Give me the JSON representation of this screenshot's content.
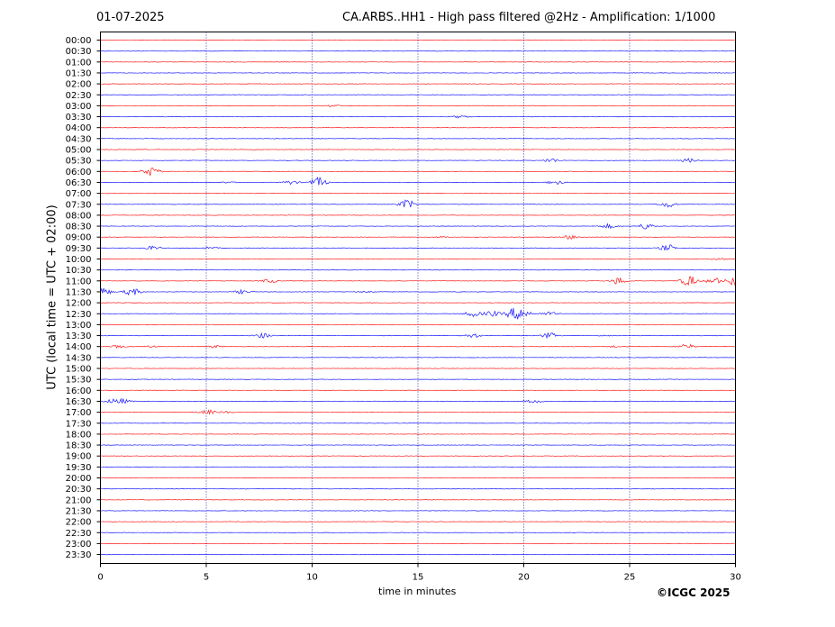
{
  "header": {
    "date": "01-07-2025",
    "title": "CA.ARBS..HH1 - High pass filtered @2Hz - Amplification: 1/1000"
  },
  "copyright": "©ICGC 2025",
  "chart_data": {
    "type": "line",
    "title": "CA.ARBS..HH1 - High pass filtered @2Hz - Amplification: 1/1000",
    "xlabel": "time in minutes",
    "ylabel": "UTC (local time = UTC + 02:00)",
    "xlim": [
      0,
      30
    ],
    "x_ticks": [
      0,
      5,
      10,
      15,
      20,
      25,
      30
    ],
    "grid": "vertical dotted at each x tick",
    "trace_colors": [
      "#ff0000",
      "#0000ff"
    ],
    "rows": [
      {
        "label": "00:00",
        "color": "#ff0000",
        "events": []
      },
      {
        "label": "00:30",
        "color": "#0000ff",
        "events": []
      },
      {
        "label": "01:00",
        "color": "#ff0000",
        "events": []
      },
      {
        "label": "01:30",
        "color": "#0000ff",
        "events": []
      },
      {
        "label": "02:00",
        "color": "#ff0000",
        "events": []
      },
      {
        "label": "02:30",
        "color": "#0000ff",
        "events": []
      },
      {
        "label": "03:00",
        "color": "#ff0000",
        "events": [
          [
            11.0,
            0.15
          ]
        ]
      },
      {
        "label": "03:30",
        "color": "#0000ff",
        "events": [
          [
            17.0,
            0.2
          ]
        ]
      },
      {
        "label": "04:00",
        "color": "#ff0000",
        "events": []
      },
      {
        "label": "04:30",
        "color": "#0000ff",
        "events": []
      },
      {
        "label": "05:00",
        "color": "#ff0000",
        "events": []
      },
      {
        "label": "05:30",
        "color": "#0000ff",
        "events": [
          [
            21.3,
            0.35
          ],
          [
            27.8,
            0.3
          ]
        ]
      },
      {
        "label": "06:00",
        "color": "#ff0000",
        "events": [
          [
            2.4,
            0.7
          ]
        ]
      },
      {
        "label": "06:30",
        "color": "#0000ff",
        "events": [
          [
            9.0,
            0.3
          ],
          [
            10.3,
            0.8
          ],
          [
            21.5,
            0.35
          ],
          [
            6.0,
            0.1
          ]
        ]
      },
      {
        "label": "07:00",
        "color": "#ff0000",
        "events": []
      },
      {
        "label": "07:30",
        "color": "#0000ff",
        "events": [
          [
            14.5,
            0.7
          ],
          [
            26.8,
            0.5
          ]
        ]
      },
      {
        "label": "08:00",
        "color": "#ff0000",
        "events": []
      },
      {
        "label": "08:30",
        "color": "#0000ff",
        "events": [
          [
            24.0,
            0.35
          ],
          [
            25.8,
            0.5
          ]
        ]
      },
      {
        "label": "09:00",
        "color": "#ff0000",
        "events": [
          [
            16.2,
            0.15
          ],
          [
            22.2,
            0.3
          ]
        ]
      },
      {
        "label": "09:30",
        "color": "#0000ff",
        "events": [
          [
            2.5,
            0.3
          ],
          [
            5.2,
            0.15
          ],
          [
            26.8,
            0.55
          ]
        ]
      },
      {
        "label": "10:00",
        "color": "#ff0000",
        "events": [
          [
            29.2,
            0.15
          ]
        ]
      },
      {
        "label": "10:30",
        "color": "#0000ff",
        "events": []
      },
      {
        "label": "11:00",
        "color": "#ff0000",
        "events": [
          [
            8.0,
            0.3
          ],
          [
            24.5,
            0.6
          ],
          [
            27.8,
            0.9
          ],
          [
            29.0,
            0.5
          ],
          [
            30.0,
            0.9
          ]
        ]
      },
      {
        "label": "11:30",
        "color": "#0000ff",
        "events": [
          [
            0.1,
            0.7
          ],
          [
            1.5,
            0.6
          ],
          [
            6.7,
            0.3
          ],
          [
            12.5,
            0.1
          ]
        ]
      },
      {
        "label": "12:00",
        "color": "#ff0000",
        "events": []
      },
      {
        "label": "12:30",
        "color": "#0000ff",
        "events": [
          [
            17.6,
            0.5
          ],
          [
            18.5,
            0.45
          ],
          [
            19.5,
            0.8
          ],
          [
            20.0,
            0.7
          ],
          [
            21.2,
            0.3
          ]
        ]
      },
      {
        "label": "13:00",
        "color": "#ff0000",
        "events": []
      },
      {
        "label": "13:30",
        "color": "#0000ff",
        "events": [
          [
            7.7,
            0.4
          ],
          [
            17.6,
            0.35
          ],
          [
            21.2,
            0.45
          ],
          [
            23.8,
            0.1
          ]
        ]
      },
      {
        "label": "14:00",
        "color": "#ff0000",
        "events": [
          [
            0.8,
            0.2
          ],
          [
            2.4,
            0.15
          ],
          [
            5.4,
            0.2
          ],
          [
            24.3,
            0.15
          ],
          [
            27.7,
            0.4
          ]
        ]
      },
      {
        "label": "14:30",
        "color": "#0000ff",
        "events": []
      },
      {
        "label": "15:00",
        "color": "#ff0000",
        "events": []
      },
      {
        "label": "15:30",
        "color": "#0000ff",
        "events": []
      },
      {
        "label": "16:00",
        "color": "#ff0000",
        "events": []
      },
      {
        "label": "16:30",
        "color": "#0000ff",
        "events": [
          [
            0.6,
            0.35
          ],
          [
            1.1,
            0.3
          ],
          [
            20.5,
            0.3
          ]
        ]
      },
      {
        "label": "17:00",
        "color": "#ff0000",
        "events": [
          [
            5.1,
            0.35
          ],
          [
            6.0,
            0.15
          ]
        ]
      },
      {
        "label": "17:30",
        "color": "#0000ff",
        "events": []
      },
      {
        "label": "18:00",
        "color": "#ff0000",
        "events": []
      },
      {
        "label": "18:30",
        "color": "#0000ff",
        "events": []
      },
      {
        "label": "19:00",
        "color": "#ff0000",
        "events": []
      },
      {
        "label": "19:30",
        "color": "#0000ff",
        "events": []
      },
      {
        "label": "20:00",
        "color": "#ff0000",
        "events": []
      },
      {
        "label": "20:30",
        "color": "#0000ff",
        "events": []
      },
      {
        "label": "21:00",
        "color": "#ff0000",
        "events": []
      },
      {
        "label": "21:30",
        "color": "#0000ff",
        "events": []
      },
      {
        "label": "22:00",
        "color": "#ff0000",
        "events": []
      },
      {
        "label": "22:30",
        "color": "#0000ff",
        "events": []
      },
      {
        "label": "23:00",
        "color": "#ff0000",
        "events": []
      },
      {
        "label": "23:30",
        "color": "#0000ff",
        "events": []
      }
    ]
  }
}
